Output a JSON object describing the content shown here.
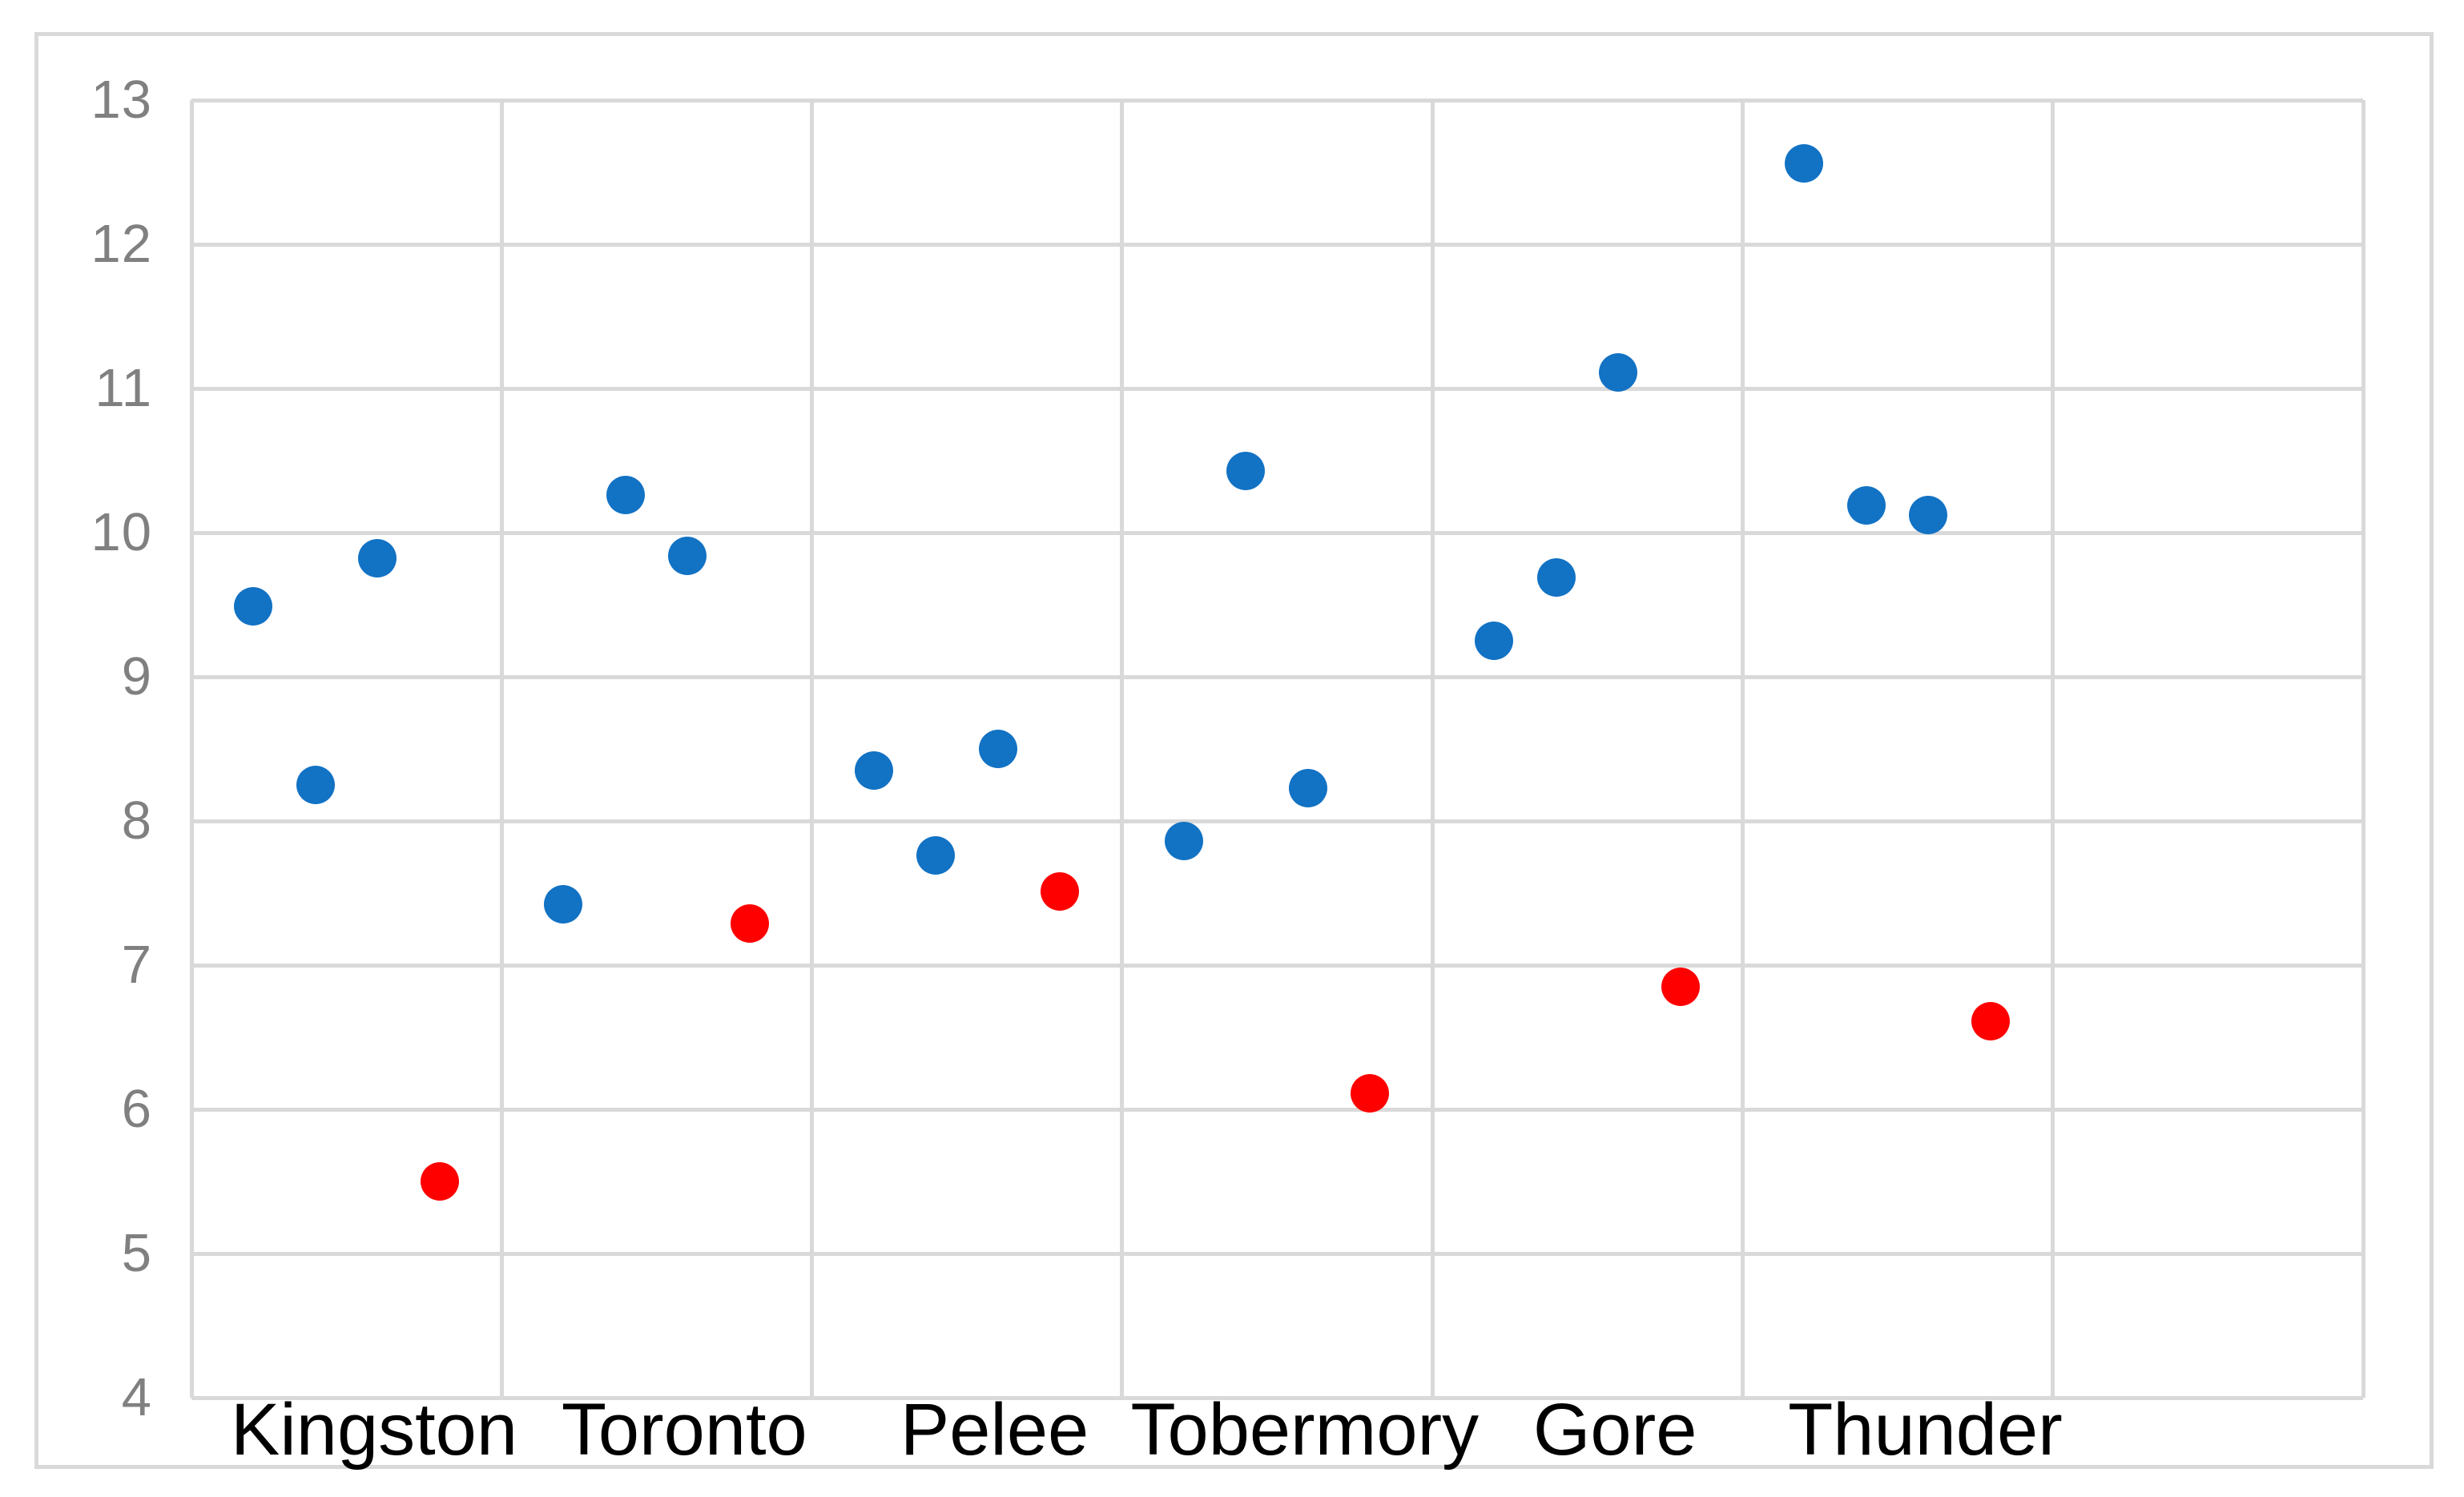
{
  "chart_data": {
    "type": "scatter",
    "title": "",
    "xlabel": "",
    "ylabel": "",
    "categories": [
      "Kingston",
      "Toronto",
      "Pelee",
      "Tobermory",
      "Gore",
      "Thunder"
    ],
    "ylim": [
      4,
      13
    ],
    "ytick_labels": [
      "13",
      "12",
      "11",
      "10",
      "9",
      "8",
      "7",
      "6",
      "5",
      "4"
    ],
    "ytick_values": [
      13,
      12,
      11,
      10,
      9,
      8,
      7,
      6,
      5,
      4
    ],
    "grid": true,
    "legend": "none",
    "series": [
      {
        "name": "blue-series",
        "color": "#1272C4",
        "points_per_category": [
          [
            9.49,
            8.25,
            9.82
          ],
          [
            7.42,
            10.26,
            9.84
          ],
          [
            8.35,
            7.76,
            8.5
          ],
          [
            7.86,
            10.43,
            8.23
          ],
          [
            9.25,
            9.69,
            11.11
          ],
          [
            12.56,
            10.19,
            10.12
          ]
        ]
      },
      {
        "name": "red-series",
        "color": "#FF0000",
        "points_per_category": [
          [
            5.5
          ],
          [
            7.29
          ],
          [
            7.51
          ],
          [
            6.11
          ],
          [
            6.85
          ],
          [
            6.61
          ]
        ]
      }
    ],
    "colors": {
      "gridline": "#D9D9D9",
      "border": "#D9D9D9",
      "tick_label": "#808080",
      "category_label": "#000000",
      "background": "#FFFFFF"
    }
  }
}
